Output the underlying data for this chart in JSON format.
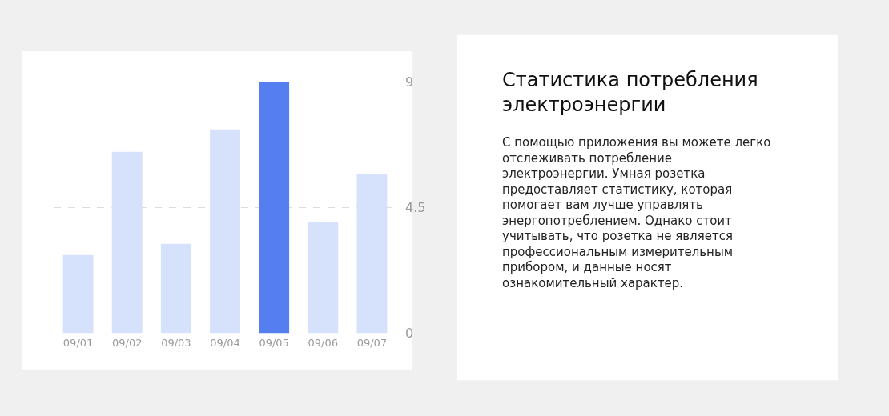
{
  "chart_data": [
    {
      "type": "bar",
      "categories": [
        "09/01",
        "09/02",
        "09/03",
        "09/04",
        "09/05",
        "09/06",
        "09/07"
      ],
      "values": [
        2.8,
        6.5,
        3.2,
        7.3,
        9,
        4.0,
        5.7
      ],
      "colors": [
        "#d6e1fb",
        "#d6e1fb",
        "#d6e1fb",
        "#d6e1fb",
        "#557ff0",
        "#d6e1fb",
        "#d6e1fb"
      ],
      "ylim": [
        0,
        9
      ],
      "yticks": [
        0,
        4.5,
        9
      ],
      "grid": "y",
      "legend": false
    },
    {
      "type": "other",
      "title": "Статистика потребления электроэнергии",
      "annotations": [
        "С помощью приложения вы можете легко отслеживать потребление электроэнергии. Умная розетка предоставляет статистику, которая помогает вам лучше управлять энергопотреблением. Однако стоит учитывать, что розетка не является профессиональным измерительным прибором, и данные носят ознакомительный характер."
      ]
    }
  ]
}
